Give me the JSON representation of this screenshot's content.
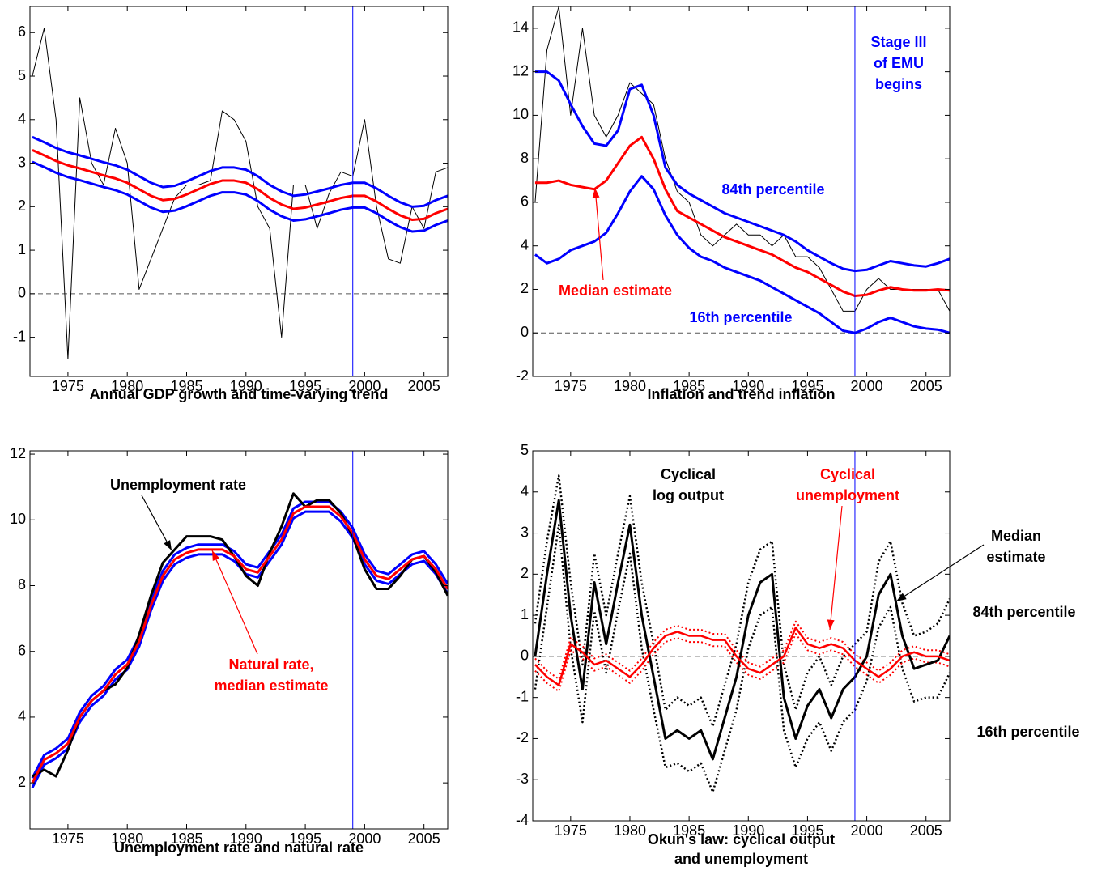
{
  "chart_data": [
    {
      "type": "line",
      "title": [
        "Annual GDP growth and time-varying trend"
      ],
      "x": [
        1972,
        1973,
        1974,
        1975,
        1976,
        1977,
        1978,
        1979,
        1980,
        1981,
        1982,
        1983,
        1984,
        1985,
        1986,
        1987,
        1988,
        1989,
        1990,
        1991,
        1992,
        1993,
        1994,
        1995,
        1996,
        1997,
        1998,
        1999,
        2000,
        2001,
        2002,
        2003,
        2004,
        2005,
        2006,
        2007
      ],
      "xlim": [
        1971.8,
        2007
      ],
      "xticks": [
        1975,
        1980,
        1985,
        1990,
        1995,
        2000,
        2005
      ],
      "ylim": [
        -1.9,
        6.6
      ],
      "yticks": [
        -1,
        0,
        1,
        2,
        3,
        4,
        5,
        6
      ],
      "hline": 0,
      "vline": 1999,
      "series": [
        {
          "color": "#000000",
          "linewidth": 1,
          "values": [
            5.0,
            6.1,
            4.0,
            -1.5,
            4.5,
            3.0,
            2.5,
            3.8,
            3.0,
            0.1,
            0.8,
            1.5,
            2.2,
            2.5,
            2.5,
            2.6,
            4.2,
            4.0,
            3.5,
            2.0,
            1.5,
            -1.0,
            2.5,
            2.5,
            1.5,
            2.3,
            2.8,
            2.7,
            4.0,
            2.0,
            0.8,
            0.7,
            2.0,
            1.5,
            2.8,
            2.9
          ]
        },
        {
          "color": "#0000ff",
          "linewidth": 3,
          "values": [
            3.6,
            3.48,
            3.35,
            3.25,
            3.18,
            3.1,
            3.02,
            2.95,
            2.85,
            2.7,
            2.55,
            2.45,
            2.48,
            2.58,
            2.7,
            2.82,
            2.9,
            2.9,
            2.85,
            2.7,
            2.5,
            2.35,
            2.25,
            2.28,
            2.35,
            2.42,
            2.5,
            2.55,
            2.55,
            2.42,
            2.25,
            2.1,
            2.0,
            2.02,
            2.15,
            2.25
          ]
        },
        {
          "color": "#0000ff",
          "linewidth": 3,
          "values": [
            3.03,
            2.91,
            2.78,
            2.68,
            2.61,
            2.53,
            2.45,
            2.38,
            2.28,
            2.13,
            1.98,
            1.88,
            1.91,
            2.01,
            2.13,
            2.25,
            2.33,
            2.33,
            2.28,
            2.13,
            1.93,
            1.78,
            1.68,
            1.71,
            1.78,
            1.85,
            1.93,
            1.98,
            1.98,
            1.85,
            1.68,
            1.53,
            1.43,
            1.45,
            1.58,
            1.68
          ]
        },
        {
          "color": "#ff0000",
          "linewidth": 3,
          "values": [
            3.3,
            3.18,
            3.05,
            2.95,
            2.88,
            2.8,
            2.72,
            2.65,
            2.55,
            2.4,
            2.25,
            2.15,
            2.18,
            2.28,
            2.4,
            2.52,
            2.6,
            2.6,
            2.55,
            2.4,
            2.2,
            2.05,
            1.95,
            1.98,
            2.05,
            2.12,
            2.2,
            2.25,
            2.25,
            2.12,
            1.95,
            1.8,
            1.7,
            1.72,
            1.85,
            1.95
          ]
        }
      ],
      "annotations": []
    },
    {
      "type": "line",
      "title": [
        "Inflation and trend inflation"
      ],
      "x": [
        1972,
        1973,
        1974,
        1975,
        1976,
        1977,
        1978,
        1979,
        1980,
        1981,
        1982,
        1983,
        1984,
        1985,
        1986,
        1987,
        1988,
        1989,
        1990,
        1991,
        1992,
        1993,
        1994,
        1995,
        1996,
        1997,
        1998,
        1999,
        2000,
        2001,
        2002,
        2003,
        2004,
        2005,
        2006,
        2007
      ],
      "xlim": [
        1971.8,
        2007
      ],
      "xticks": [
        1975,
        1980,
        1985,
        1990,
        1995,
        2000,
        2005
      ],
      "ylim": [
        -2,
        15
      ],
      "yticks": [
        -2,
        0,
        2,
        4,
        6,
        8,
        10,
        12,
        14
      ],
      "hline": 0,
      "vline": 1999,
      "series": [
        {
          "color": "#000000",
          "linewidth": 1,
          "values": [
            6.0,
            13,
            15,
            10,
            14,
            10,
            9,
            10,
            11.5,
            11,
            10.5,
            8,
            6.5,
            6,
            4.5,
            4,
            4.5,
            5,
            4.5,
            4.5,
            4,
            4.5,
            3.5,
            3.5,
            3,
            2,
            1,
            1,
            2,
            2.5,
            2,
            2,
            2,
            2,
            2,
            1
          ]
        },
        {
          "color": "#0000ff",
          "linewidth": 3,
          "values": [
            12.0,
            12.0,
            11.6,
            10.5,
            9.5,
            8.7,
            8.6,
            9.3,
            11.2,
            11.4,
            10.0,
            7.6,
            6.8,
            6.4,
            6.1,
            5.8,
            5.5,
            5.3,
            5.1,
            4.9,
            4.7,
            4.5,
            4.2,
            3.8,
            3.5,
            3.2,
            2.95,
            2.85,
            2.9,
            3.1,
            3.3,
            3.2,
            3.1,
            3.05,
            3.2,
            3.4
          ]
        },
        {
          "color": "#0000ff",
          "linewidth": 3,
          "values": [
            3.6,
            3.2,
            3.4,
            3.8,
            4.0,
            4.2,
            4.6,
            5.5,
            6.5,
            7.2,
            6.6,
            5.4,
            4.5,
            3.9,
            3.5,
            3.3,
            3.0,
            2.8,
            2.6,
            2.4,
            2.1,
            1.8,
            1.5,
            1.2,
            0.9,
            0.5,
            0.1,
            0.0,
            0.2,
            0.5,
            0.7,
            0.5,
            0.3,
            0.2,
            0.15,
            0.0
          ]
        },
        {
          "color": "#ff0000",
          "linewidth": 3,
          "values": [
            6.9,
            6.9,
            7.0,
            6.8,
            6.7,
            6.6,
            7.0,
            7.8,
            8.6,
            9.0,
            8.0,
            6.6,
            5.6,
            5.3,
            5.0,
            4.7,
            4.4,
            4.2,
            4.0,
            3.8,
            3.6,
            3.3,
            3.0,
            2.8,
            2.5,
            2.2,
            1.9,
            1.7,
            1.75,
            1.95,
            2.1,
            2.0,
            1.95,
            1.95,
            2.0,
            1.95
          ]
        }
      ],
      "annotations": [
        {
          "text": [
            "Stage III",
            "of EMU",
            "begins"
          ],
          "color": "#0000ff"
        },
        {
          "text": [
            "84th percentile"
          ],
          "color": "#0000ff"
        },
        {
          "text": [
            "Median estimate"
          ],
          "color": "#ff0000"
        },
        {
          "text": [
            "16th percentile"
          ],
          "color": "#0000ff"
        }
      ]
    },
    {
      "type": "line",
      "title": [
        "Unemployment rate and natural rate"
      ],
      "x": [
        1972,
        1973,
        1974,
        1975,
        1976,
        1977,
        1978,
        1979,
        1980,
        1981,
        1982,
        1983,
        1984,
        1985,
        1986,
        1987,
        1988,
        1989,
        1990,
        1991,
        1992,
        1993,
        1994,
        1995,
        1996,
        1997,
        1998,
        1999,
        2000,
        2001,
        2002,
        2003,
        2004,
        2005,
        2006,
        2007
      ],
      "xlim": [
        1971.8,
        2007
      ],
      "xticks": [
        1975,
        1980,
        1985,
        1990,
        1995,
        2000,
        2005
      ],
      "ylim": [
        0.6,
        12.1
      ],
      "yticks": [
        2,
        4,
        6,
        8,
        10,
        12
      ],
      "vline": 1999,
      "series": [
        {
          "color": "#0000ff",
          "linewidth": 3,
          "values": [
            2.15,
            2.85,
            3.05,
            3.35,
            4.15,
            4.65,
            4.95,
            5.45,
            5.75,
            6.45,
            7.55,
            8.45,
            8.95,
            9.15,
            9.25,
            9.25,
            9.25,
            9.05,
            8.65,
            8.55,
            9.05,
            9.55,
            10.35,
            10.55,
            10.55,
            10.55,
            10.25,
            9.75,
            8.95,
            8.45,
            8.35,
            8.65,
            8.95,
            9.05,
            8.65,
            8.05
          ]
        },
        {
          "color": "#0000ff",
          "linewidth": 3,
          "values": [
            1.85,
            2.55,
            2.75,
            3.05,
            3.85,
            4.35,
            4.65,
            5.15,
            5.45,
            6.15,
            7.25,
            8.15,
            8.65,
            8.85,
            8.95,
            8.95,
            8.95,
            8.75,
            8.35,
            8.25,
            8.75,
            9.25,
            10.05,
            10.25,
            10.25,
            10.25,
            9.95,
            9.45,
            8.65,
            8.15,
            8.05,
            8.35,
            8.65,
            8.75,
            8.35,
            7.75
          ]
        },
        {
          "color": "#000000",
          "linewidth": 3,
          "values": [
            2.2,
            2.4,
            2.2,
            3.0,
            4.0,
            4.5,
            4.8,
            5.0,
            5.5,
            6.5,
            7.7,
            8.7,
            9.1,
            9.5,
            9.5,
            9.5,
            9.4,
            8.9,
            8.3,
            8.0,
            9.0,
            9.8,
            10.8,
            10.4,
            10.6,
            10.6,
            10.2,
            9.5,
            8.5,
            7.9,
            7.9,
            8.3,
            8.8,
            8.9,
            8.4,
            7.7
          ]
        },
        {
          "color": "#ff0000",
          "linewidth": 3,
          "values": [
            2.0,
            2.7,
            2.9,
            3.2,
            4.0,
            4.5,
            4.8,
            5.3,
            5.6,
            6.3,
            7.4,
            8.3,
            8.8,
            9.0,
            9.1,
            9.1,
            9.1,
            8.9,
            8.5,
            8.4,
            8.9,
            9.4,
            10.2,
            10.4,
            10.4,
            10.4,
            10.1,
            9.6,
            8.8,
            8.3,
            8.2,
            8.5,
            8.8,
            8.9,
            8.5,
            7.9
          ]
        }
      ],
      "annotations": [
        {
          "text": [
            "Unemployment rate"
          ],
          "color": "#000000"
        },
        {
          "text": [
            "Natural rate,",
            "median estimate"
          ],
          "color": "#ff0000"
        }
      ]
    },
    {
      "type": "line",
      "title": [
        "Okun's law: cyclical output",
        "and unemployment"
      ],
      "x": [
        1972,
        1973,
        1974,
        1975,
        1976,
        1977,
        1978,
        1979,
        1980,
        1981,
        1982,
        1983,
        1984,
        1985,
        1986,
        1987,
        1988,
        1989,
        1990,
        1991,
        1992,
        1993,
        1994,
        1995,
        1996,
        1997,
        1998,
        1999,
        2000,
        2001,
        2002,
        2003,
        2004,
        2005,
        2006,
        2007
      ],
      "xlim": [
        1971.8,
        2007
      ],
      "xticks": [
        1975,
        1980,
        1985,
        1990,
        1995,
        2000,
        2005
      ],
      "ylim": [
        -4,
        5
      ],
      "yticks": [
        -4,
        -3,
        -2,
        -1,
        0,
        1,
        2,
        3,
        4,
        5
      ],
      "hline": 0,
      "vline": 1999,
      "series": [
        {
          "color": "#000000",
          "linewidth": 2.5,
          "style": "dotted",
          "values": [
            0.8,
            2.8,
            4.4,
            1.8,
            -0.2,
            2.5,
            1.0,
            2.5,
            3.9,
            1.8,
            0.3,
            -1.3,
            -1.0,
            -1.2,
            -1.0,
            -1.7,
            -0.7,
            0.3,
            1.8,
            2.6,
            2.8,
            -0.2,
            -1.3,
            -0.4,
            0.0,
            -0.7,
            0.0,
            0.3,
            0.6,
            2.3,
            2.8,
            1.3,
            0.5,
            0.6,
            0.8,
            1.4
          ]
        },
        {
          "color": "#000000",
          "linewidth": 2.5,
          "style": "dotted",
          "values": [
            -0.8,
            1.2,
            3.2,
            0.2,
            -1.6,
            1.1,
            -0.4,
            1.1,
            2.5,
            0.2,
            -1.3,
            -2.7,
            -2.6,
            -2.8,
            -2.6,
            -3.3,
            -2.3,
            -1.3,
            0.2,
            1.0,
            1.2,
            -1.8,
            -2.7,
            -2.0,
            -1.6,
            -2.3,
            -1.6,
            -1.3,
            -0.6,
            0.7,
            1.2,
            -0.3,
            -1.1,
            -1.0,
            -1.0,
            -0.4
          ]
        },
        {
          "color": "#ff0000",
          "linewidth": 2,
          "style": "dotted",
          "values": [
            -0.05,
            -0.35,
            -0.55,
            0.45,
            0.25,
            -0.05,
            0.05,
            -0.15,
            -0.35,
            -0.05,
            0.35,
            0.65,
            0.75,
            0.65,
            0.65,
            0.55,
            0.55,
            0.15,
            -0.15,
            -0.25,
            -0.05,
            0.15,
            0.85,
            0.45,
            0.35,
            0.45,
            0.35,
            0.05,
            -0.15,
            -0.35,
            -0.15,
            0.15,
            0.25,
            0.15,
            0.15,
            0.05
          ]
        },
        {
          "color": "#ff0000",
          "linewidth": 2,
          "style": "dotted",
          "values": [
            -0.35,
            -0.65,
            -0.85,
            0.15,
            -0.05,
            -0.35,
            -0.25,
            -0.45,
            -0.65,
            -0.35,
            0.05,
            0.35,
            0.45,
            0.35,
            0.35,
            0.25,
            0.25,
            -0.15,
            -0.45,
            -0.55,
            -0.35,
            -0.15,
            0.55,
            0.15,
            0.05,
            0.15,
            0.05,
            -0.25,
            -0.45,
            -0.65,
            -0.45,
            -0.15,
            -0.05,
            -0.15,
            -0.15,
            -0.25
          ]
        },
        {
          "color": "#000000",
          "linewidth": 3,
          "values": [
            0,
            2.0,
            3.8,
            1.0,
            -0.8,
            1.8,
            0.3,
            1.8,
            3.2,
            1.0,
            -0.5,
            -2.0,
            -1.8,
            -2.0,
            -1.8,
            -2.5,
            -1.5,
            -0.5,
            1.0,
            1.8,
            2.0,
            -1.0,
            -2.0,
            -1.2,
            -0.8,
            -1.5,
            -0.8,
            -0.5,
            0.0,
            1.5,
            2.0,
            0.5,
            -0.3,
            -0.2,
            -0.1,
            0.5
          ]
        },
        {
          "color": "#ff0000",
          "linewidth": 2.5,
          "values": [
            -0.2,
            -0.5,
            -0.7,
            0.3,
            0.1,
            -0.2,
            -0.1,
            -0.3,
            -0.5,
            -0.2,
            0.2,
            0.5,
            0.6,
            0.5,
            0.5,
            0.4,
            0.4,
            0.0,
            -0.3,
            -0.4,
            -0.2,
            0.0,
            0.7,
            0.3,
            0.2,
            0.3,
            0.2,
            -0.1,
            -0.3,
            -0.5,
            -0.3,
            0.0,
            0.1,
            0.0,
            0.0,
            -0.1
          ]
        }
      ],
      "annotations": [
        {
          "text": [
            "Cyclical",
            "log output"
          ],
          "color": "#000000"
        },
        {
          "text": [
            "Cyclical",
            "unemployment"
          ],
          "color": "#ff0000"
        },
        {
          "text": [
            "Median",
            "estimate"
          ],
          "color": "#000000"
        },
        {
          "text": [
            "84th percentile"
          ],
          "color": "#000000"
        },
        {
          "text": [
            "16th percentile"
          ],
          "color": "#000000"
        }
      ]
    }
  ]
}
